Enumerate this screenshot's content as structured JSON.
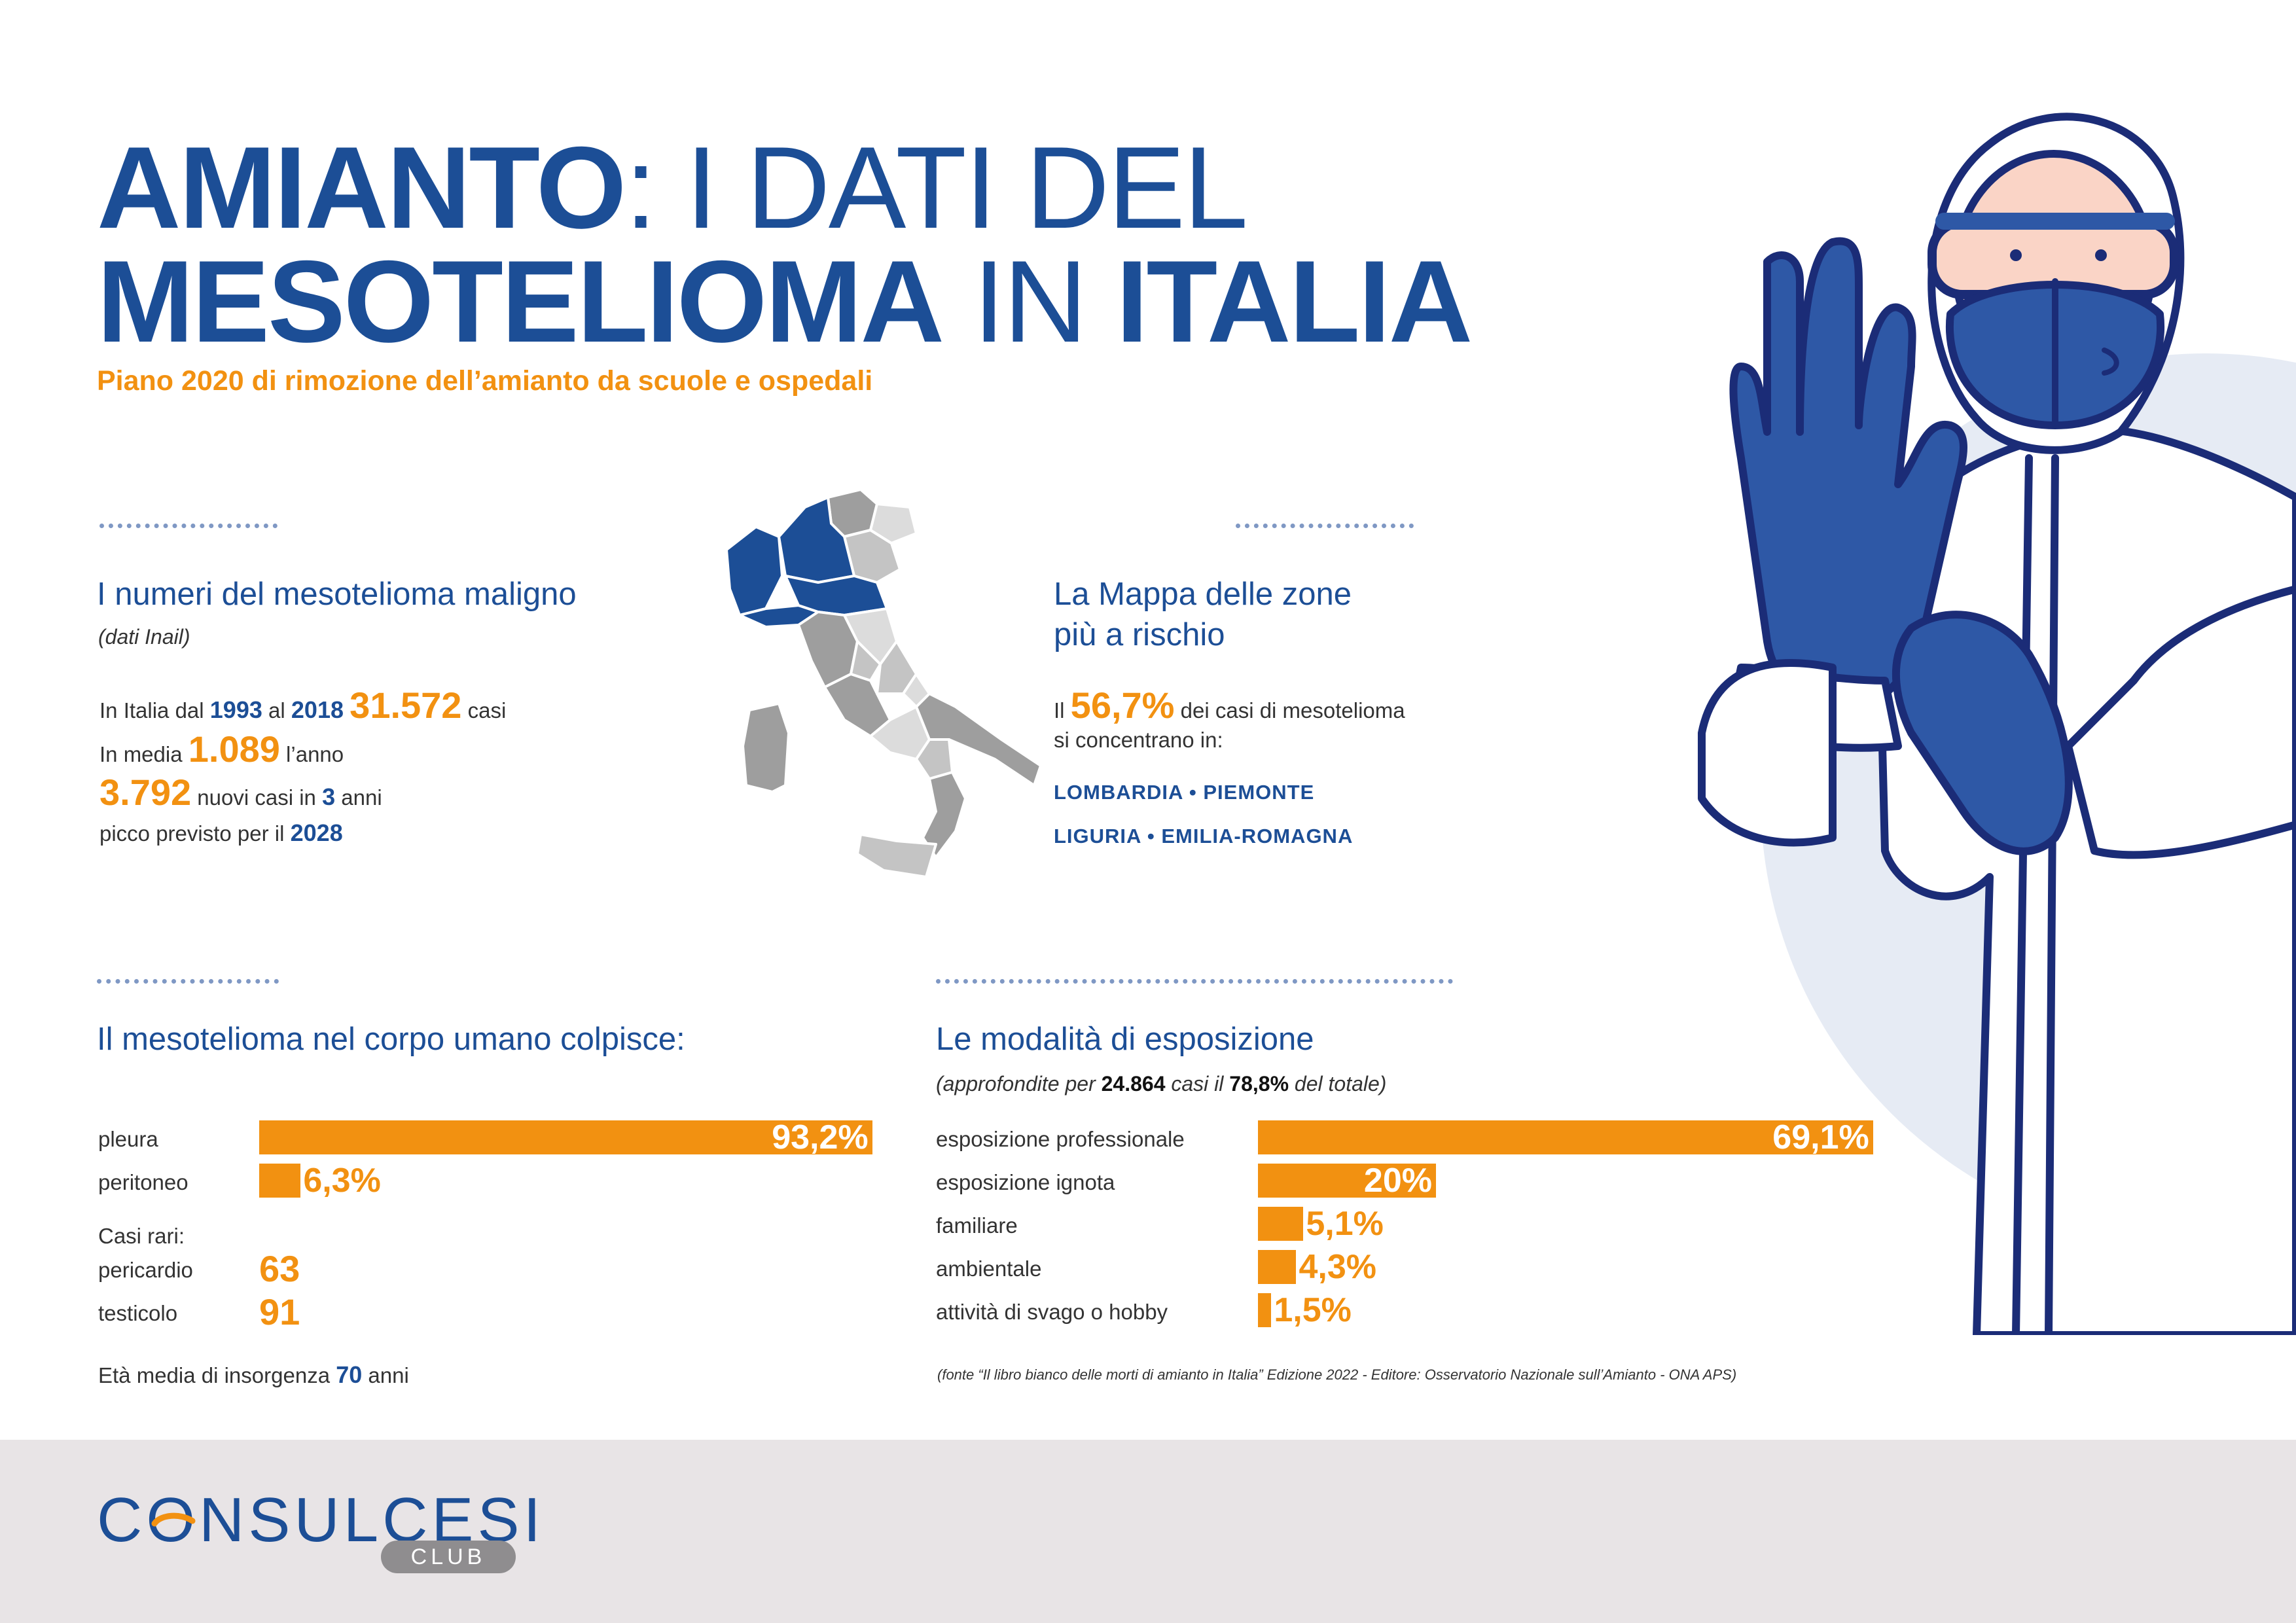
{
  "header": {
    "title_amianto": "AMIANTO",
    "title_colon_rest": ": I DATI DEL",
    "title_mesotelioma": "MESOTELIOMA",
    "title_in": " IN ",
    "title_italia": "ITALIA",
    "subtitle": "Piano 2020 di rimozione dell’amianto da scuole e ospedali"
  },
  "numbers": {
    "heading": "I numeri del mesotelioma maligno",
    "source": "(dati Inail)",
    "l1_a": "In Italia dal ",
    "l1_year1": "1993",
    "l1_b": " al ",
    "l1_year2": "2018",
    "l1_cases": "31.572",
    "l1_c": " casi",
    "l2_a": "In media ",
    "l2_value": "1.089",
    "l2_b": " l’anno",
    "l3_value": "3.792",
    "l3_a": " nuovi casi in ",
    "l3_years": "3",
    "l3_b": " anni",
    "l4_a": "picco previsto per il ",
    "l4_year": "2028"
  },
  "map_section": {
    "heading_line1": "La Mappa delle zone",
    "heading_line2": "più a rischio",
    "l1_a": "Il ",
    "l1_value": "56,7%",
    "l1_b": " dei casi di mesotelioma",
    "l2": "si concentrano in:",
    "regions_line1": "LOMBARDIA • PIEMONTE",
    "regions_line2": "LIGURIA • EMILIA-ROMAGNA",
    "highlight_color": "#1c4e96",
    "other_colors": [
      "#9e9e9e",
      "#c4c4c4",
      "#dcdcdc"
    ]
  },
  "body_section": {
    "heading": "Il mesotelioma nel corpo umano colpisce:",
    "rare_label": "Casi rari:",
    "rare_items": [
      {
        "label": "pericardio",
        "value": "63"
      },
      {
        "label": "testicolo",
        "value": "91"
      }
    ],
    "age_a": "Età media di insorgenza ",
    "age_value": "70",
    "age_b": " anni"
  },
  "exposure_section": {
    "heading": "Le modalità di esposizione",
    "note_a": "(approfondite per ",
    "note_cases": "24.864",
    "note_b": " casi il ",
    "note_pct": "78,8%",
    "note_c": " del totale)",
    "source": "(fonte “Il libro bianco delle morti di amianto in Italia” Edizione 2022 - Editore: Osservatorio Nazionale sull’Amianto - ONA APS)"
  },
  "chart_data": [
    {
      "type": "bar",
      "orientation": "horizontal",
      "categories": [
        "pleura",
        "peritoneo"
      ],
      "values": [
        93.2,
        6.3
      ],
      "labels": [
        "93,2%",
        "6,3%"
      ],
      "unit": "%",
      "color": "#f29111"
    },
    {
      "type": "bar",
      "orientation": "horizontal",
      "categories": [
        "esposizione professionale",
        "esposizione ignota",
        "familiare",
        "ambientale",
        "attività di svago o hobby"
      ],
      "values": [
        69.1,
        20,
        5.1,
        4.3,
        1.5
      ],
      "labels": [
        "69,1%",
        "20%",
        "5,1%",
        "4,3%",
        "1,5%"
      ],
      "unit": "%",
      "color": "#f29111"
    }
  ],
  "footer": {
    "brand": "CONSULCESI",
    "brand_sub": "CLUB"
  },
  "colors": {
    "primary": "#1c4e96",
    "accent": "#f29111",
    "footer_bg": "#e8e4e6"
  }
}
